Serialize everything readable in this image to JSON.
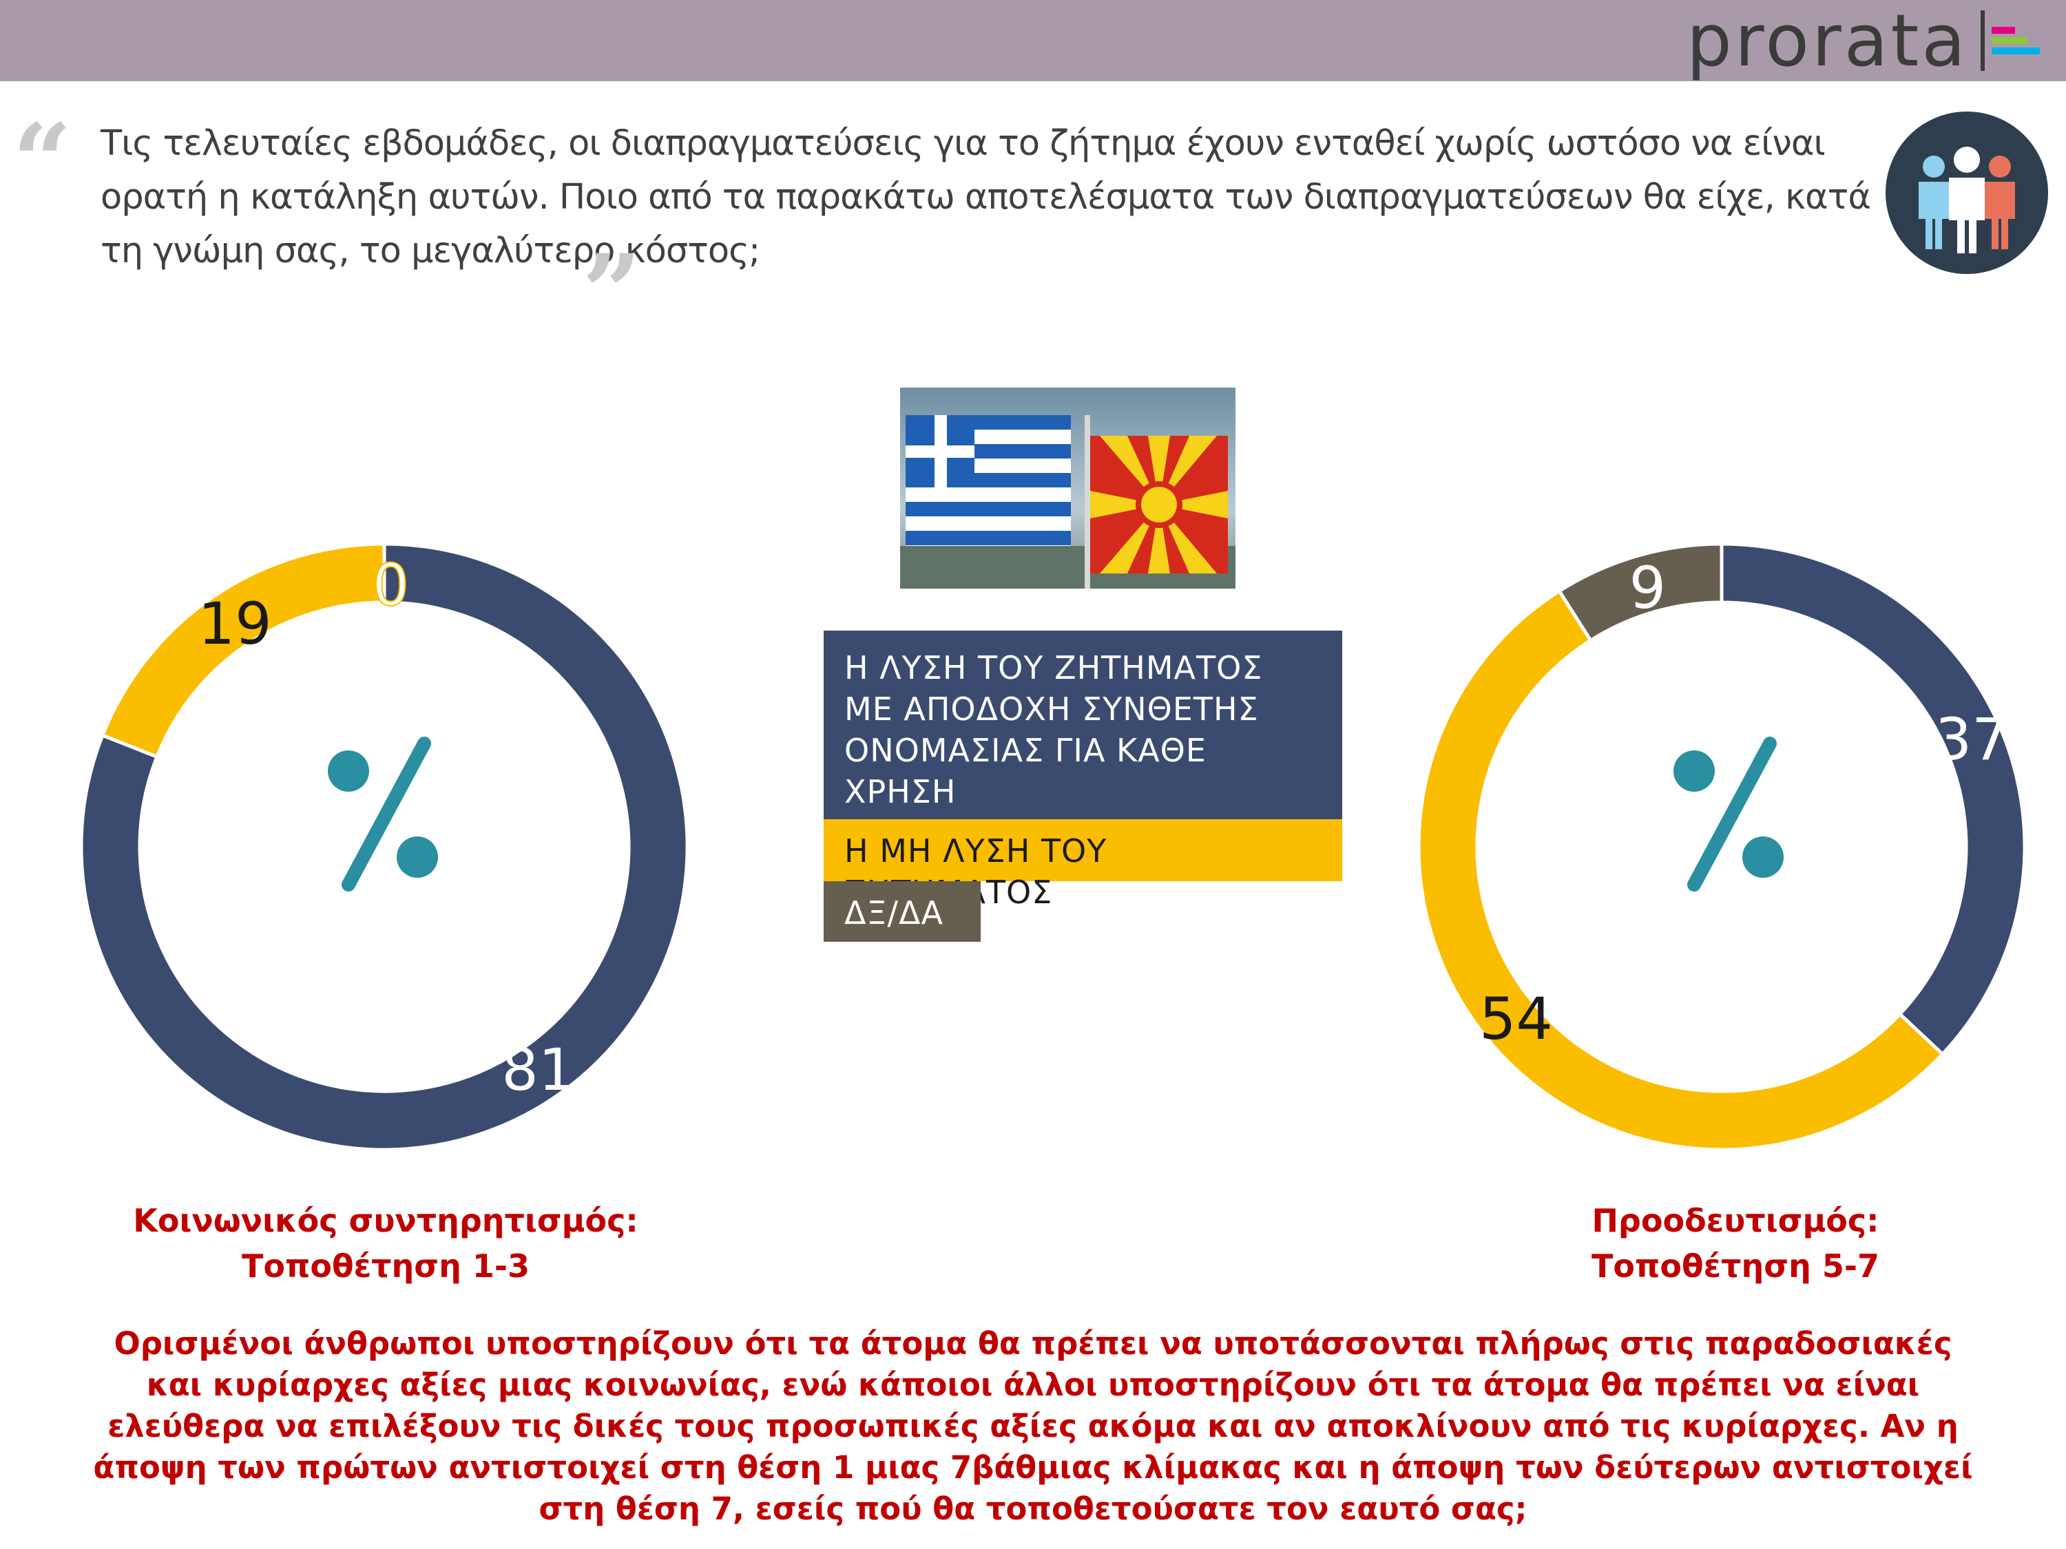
{
  "header": {
    "logo_text": "prorata",
    "bar_color": "#a99aaa",
    "logo_bar_colors": [
      "#e6007e",
      "#8dc63f",
      "#00aeef"
    ]
  },
  "question": {
    "text": "Τις τελευταίες εβδομάδες, οι διαπραγματεύσεις για το ζήτημα έχουν ενταθεί χωρίς ωστόσο να είναι ορατή η κατάληξη αυτών. Ποιο από τα παρακάτω αποτελέσματα των διαπραγματεύσεων θα είχε, κατά τη γνώμη σας, το μεγαλύτερο κόστος;",
    "quote_open": "“",
    "quote_close": "”",
    "icon": "people-group-icon"
  },
  "image": {
    "icon": "greek-and-north-macedonian-flags-photo"
  },
  "chart_data": {
    "type": "donut",
    "legend": [
      {
        "label": "Η ΛΥΣΗ ΤΟΥ ΖΗΤΗΜΑΤΟΣ ΜΕ ΑΠΟΔΟΧΗ ΣΥΝΘΕΤΗΣ ΟΝΟΜΑΣΙΑΣ ΓΙΑ ΚΑΘΕ ΧΡΗΣΗ",
        "color": "#3b4a6f"
      },
      {
        "label": "Η ΜΗ ΛΥΣΗ ΤΟΥ ΖΗΤΗΜΑΤΟΣ",
        "color": "#fbbd00"
      },
      {
        "label": "ΔΞ/ΔΑ",
        "color": "#665e4f"
      }
    ],
    "center_symbol": "%",
    "charts": [
      {
        "caption_line1": "Κοινωνικός συντηρητισμός:",
        "caption_line2": "Τοποθέτηση 1-3",
        "values": [
          81,
          19,
          0
        ]
      },
      {
        "caption_line1": "Προοδευτισμός:",
        "caption_line2": "Τοποθέτηση 5-7",
        "values": [
          37,
          54,
          9
        ]
      }
    ]
  },
  "footnote": "Ορισμένοι άνθρωποι υποστηρίζουν ότι τα άτομα θα πρέπει να υποτάσσονται πλήρως στις παραδοσιακές και κυρίαρχες αξίες μιας κοινωνίας, ενώ κάποιοι άλλοι υποστηρίζουν ότι τα άτομα θα πρέπει να είναι ελεύθερα να επιλέξουν τις δικές τους προσωπικές αξίες ακόμα και αν αποκλίνουν από τις κυρίαρχες. Αν η άποψη των πρώτων αντιστοιχεί στη θέση 1 μιας 7βάθμιας κλίμακας και η άποψη των δεύτερων αντιστοιχεί στη θέση 7, εσείς πού θα τοποθετούσατε τον εαυτό σας;"
}
